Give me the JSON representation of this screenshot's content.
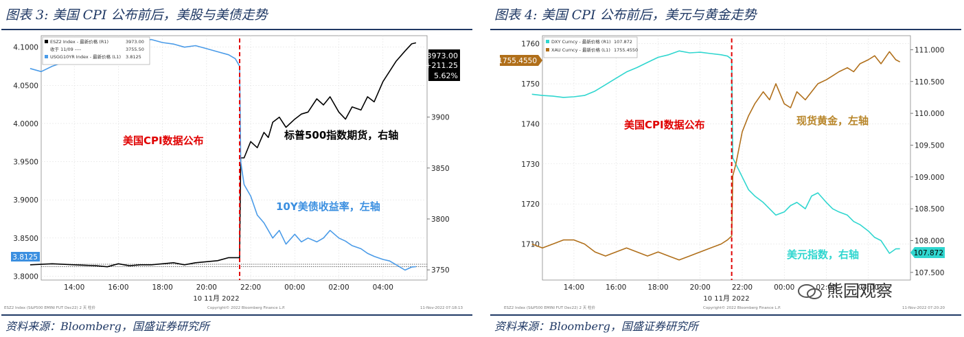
{
  "left": {
    "title": "图表 3:  美国 CPI 公布前后，美股与美债走势",
    "source": "资料来源：Bloomberg，国盛证券研究所",
    "legend": [
      "ESZ2 Index - 最新价格 (R1)",
      "收于 11/09 ----",
      "USGG10YR Index - 最新价格 (L1)"
    ],
    "legend_values": [
      "3973.00",
      "3755.50",
      "3.8125"
    ],
    "annotation_cpi": "美国CPI数据公布",
    "annotation_sp": "标普500指数期货，右轴",
    "annotation_bond": "10Y美债收益率，左轴",
    "date_label": "10 11月 2022",
    "footer_left": "ESZ2 Index (S&P500 EMINI FUT  Dec22) 2 天  柱价",
    "footer_center": "Copyright© 2022 Bloomberg Finance L.P.",
    "footer_right": "11-Nov-2022 07:18:13",
    "last_badge": [
      "3973.00",
      "+211.25",
      "5.62%"
    ],
    "left_badge": "3.8125",
    "colors": {
      "sp": "#000000",
      "bond": "#4a9be8",
      "cpi": "#e00000",
      "annot_sp": "#000000",
      "annot_bond": "#3b8fe0"
    },
    "chart_data": {
      "type": "line",
      "x_ticks": [
        "14:00",
        "16:00",
        "18:00",
        "20:00",
        "22:00",
        "00:00",
        "02:00",
        "04:00"
      ],
      "y_left_ticks": [
        "4.1000",
        "4.0500",
        "4.0000",
        "3.9500",
        "3.9000",
        "3.8500",
        "3.8000"
      ],
      "y_right_ticks": [
        "3900",
        "3850",
        "3800",
        "3750"
      ],
      "ylim_left": [
        3.795,
        4.115
      ],
      "ylim_right": [
        3740,
        3980
      ],
      "cpi_release_hour": 21.5,
      "series": [
        {
          "name": "ESZ2 Index",
          "axis": "right",
          "x": [
            12,
            13,
            14,
            15,
            15.5,
            16,
            16.5,
            17,
            17.5,
            18,
            18.5,
            19,
            19.5,
            20,
            20.5,
            21,
            21.4,
            21.5,
            21.55,
            21.7,
            22,
            22.3,
            22.6,
            22.8,
            23,
            23.3,
            23.6,
            24,
            24.3,
            24.6,
            25,
            25.3,
            25.6,
            26,
            26.3,
            26.6,
            27,
            27.3,
            27.6,
            28,
            28.3,
            28.6,
            29,
            29.3,
            29.5
          ],
          "y": [
            3755,
            3756,
            3755,
            3754,
            3753,
            3756,
            3754,
            3755,
            3755,
            3756,
            3757,
            3755,
            3757,
            3758,
            3759,
            3762,
            3762,
            3762,
            3860,
            3860,
            3876,
            3870,
            3885,
            3880,
            3895,
            3900,
            3890,
            3898,
            3903,
            3905,
            3918,
            3912,
            3920,
            3905,
            3898,
            3910,
            3907,
            3920,
            3915,
            3935,
            3945,
            3955,
            3965,
            3972,
            3973
          ]
        },
        {
          "name": "USGG10YR Index",
          "axis": "left",
          "x": [
            12,
            12.5,
            13,
            13.5,
            14,
            14.5,
            15,
            15.5,
            16,
            16.5,
            17,
            17.5,
            18,
            18.5,
            19,
            19.5,
            20,
            20.5,
            21,
            21.3,
            21.5,
            21.55,
            21.7,
            22,
            22.3,
            22.6,
            23,
            23.3,
            23.6,
            24,
            24.3,
            24.6,
            25,
            25.3,
            25.6,
            26,
            26.3,
            26.6,
            27,
            27.3,
            27.6,
            28,
            28.3,
            28.6,
            29,
            29.3,
            29.5
          ],
          "y": [
            4.072,
            4.068,
            4.075,
            4.08,
            4.09,
            4.095,
            4.102,
            4.1,
            4.098,
            4.105,
            4.108,
            4.11,
            4.106,
            4.104,
            4.1,
            4.102,
            4.098,
            4.094,
            4.09,
            4.085,
            4.075,
            3.95,
            3.92,
            3.905,
            3.88,
            3.87,
            3.85,
            3.86,
            3.842,
            3.855,
            3.845,
            3.85,
            3.845,
            3.85,
            3.86,
            3.85,
            3.846,
            3.84,
            3.836,
            3.83,
            3.826,
            3.822,
            3.82,
            3.815,
            3.808,
            3.812,
            3.8125
          ]
        }
      ]
    }
  },
  "right": {
    "title": "图表 4:  美国 CPI 公布前后，美元与黄金走势",
    "source": "资料来源：Bloomberg，国盛证券研究所",
    "legend": [
      "DXY Curncy - 最新价格 (R1)",
      "XAU Curncy - 最新价格 (L1)"
    ],
    "legend_values": [
      "107.872",
      "1755.4550"
    ],
    "annotation_cpi": "美国CPI数据公布",
    "annotation_gold": "现货黄金，左轴",
    "annotation_dxy": "美元指数，右轴",
    "date_label": "10 11月 2022",
    "footer_left": "ESZ2 Index (S&P500 EMINI FUT  Dec22) 2 天  柱价",
    "footer_center": "Copyright© 2022 Bloomberg Finance L.P.",
    "footer_right": "11-Nov-2022 07:20:20",
    "left_badge": "1755.4550",
    "right_badge": "107.872",
    "colors": {
      "dxy": "#2fd6cf",
      "gold": "#b06f1a",
      "cpi": "#e00000",
      "annot_gold": "#b8862a",
      "annot_dxy": "#2fd6cf"
    },
    "chart_data": {
      "type": "line",
      "x_ticks": [
        "14:00",
        "16:00",
        "18:00",
        "20:00",
        "22:00",
        "00:00",
        "02:00",
        "04:00"
      ],
      "y_left_ticks": [
        "1760",
        "1750",
        "1740",
        "1730",
        "1720",
        "1710"
      ],
      "y_right_ticks": [
        "111.000",
        "110.500",
        "110.000",
        "109.500",
        "109.000",
        "108.500",
        "108.000",
        "107.500"
      ],
      "ylim_left": [
        1701,
        1762
      ],
      "ylim_right": [
        107.38,
        111.22
      ],
      "cpi_release_hour": 21.5,
      "series": [
        {
          "name": "DXY Curncy",
          "axis": "right",
          "x": [
            12,
            12.5,
            13,
            13.5,
            14,
            14.5,
            15,
            15.5,
            16,
            16.5,
            17,
            17.5,
            18,
            18.5,
            19,
            19.5,
            20,
            20.5,
            21,
            21.3,
            21.5,
            21.55,
            21.7,
            22,
            22.3,
            22.6,
            23,
            23.3,
            23.6,
            24,
            24.3,
            24.6,
            25,
            25.3,
            25.6,
            26,
            26.3,
            26.6,
            27,
            27.3,
            27.6,
            28,
            28.3,
            28.6,
            29,
            29.3,
            29.5
          ],
          "y": [
            110.3,
            110.28,
            110.27,
            110.25,
            110.26,
            110.28,
            110.35,
            110.45,
            110.55,
            110.65,
            110.72,
            110.8,
            110.88,
            110.92,
            110.98,
            110.95,
            110.96,
            110.94,
            110.92,
            110.9,
            110.85,
            109.3,
            109.2,
            109.0,
            108.8,
            108.7,
            108.6,
            108.5,
            108.4,
            108.45,
            108.55,
            108.6,
            108.5,
            108.7,
            108.75,
            108.6,
            108.5,
            108.45,
            108.4,
            108.3,
            108.25,
            108.15,
            108.05,
            108.0,
            107.8,
            107.87,
            107.872
          ]
        },
        {
          "name": "XAU Curncy",
          "axis": "left",
          "x": [
            12,
            12.5,
            13,
            13.5,
            14,
            14.5,
            15,
            15.5,
            16,
            16.5,
            17,
            17.5,
            18,
            18.5,
            19,
            19.5,
            20,
            20.5,
            21,
            21.3,
            21.5,
            21.55,
            21.7,
            22,
            22.3,
            22.6,
            23,
            23.3,
            23.6,
            24,
            24.3,
            24.6,
            25,
            25.3,
            25.6,
            26,
            26.3,
            26.6,
            27,
            27.3,
            27.6,
            28,
            28.3,
            28.6,
            29,
            29.3,
            29.5
          ],
          "y": [
            1710,
            1709,
            1710,
            1711,
            1711,
            1710,
            1708,
            1707,
            1708,
            1709,
            1708,
            1707,
            1708,
            1707,
            1706,
            1707,
            1708,
            1709,
            1710,
            1711,
            1712,
            1727,
            1730,
            1738,
            1742,
            1745,
            1748,
            1746,
            1750,
            1745,
            1744,
            1748,
            1746,
            1748,
            1750,
            1751,
            1752,
            1753,
            1754,
            1753,
            1755,
            1756,
            1757,
            1755,
            1758,
            1756,
            1755.455
          ]
        }
      ]
    }
  }
}
